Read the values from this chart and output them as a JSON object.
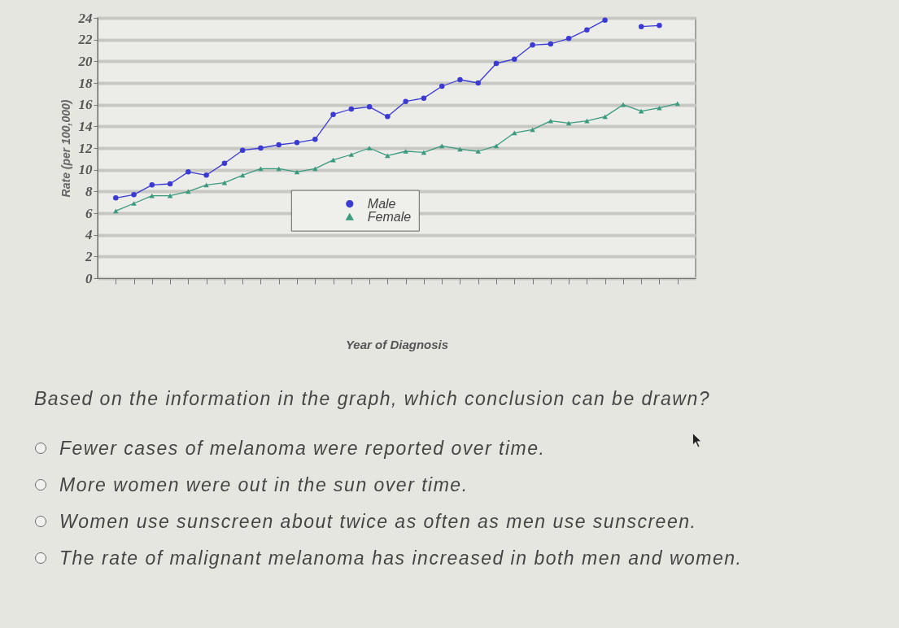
{
  "chart_data": {
    "type": "line",
    "xlabel": "Year of Diagnosis",
    "ylabel": "Rate (per 100,000)",
    "categories": [
      null,
      null,
      null,
      null,
      null,
      null,
      null,
      null,
      null,
      null,
      null,
      null,
      null,
      null,
      null,
      null,
      null,
      null,
      null,
      null,
      null,
      null,
      null,
      null,
      null,
      null,
      null,
      null,
      null,
      null,
      null,
      null
    ],
    "series": [
      {
        "name": "Male",
        "color": "#3b3bd4",
        "marker": "circle",
        "values": [
          7.4,
          7.7,
          8.6,
          8.7,
          9.8,
          9.5,
          10.6,
          11.8,
          12.0,
          12.3,
          12.5,
          12.8,
          15.1,
          15.6,
          15.8,
          14.9,
          16.3,
          16.6,
          17.7,
          18.3,
          18.0,
          19.8,
          20.2,
          21.5,
          21.6,
          22.1,
          22.9,
          23.8,
          null,
          23.2,
          23.3,
          null
        ]
      },
      {
        "name": "Female",
        "color": "#3a9a7e",
        "marker": "triangle",
        "values": [
          6.2,
          6.9,
          7.6,
          7.6,
          8.0,
          8.6,
          8.8,
          9.5,
          10.1,
          10.1,
          9.8,
          10.1,
          10.9,
          11.4,
          12.0,
          11.3,
          11.7,
          11.6,
          12.2,
          11.9,
          11.7,
          12.2,
          13.4,
          13.7,
          14.5,
          14.3,
          14.5,
          14.9,
          16.0,
          15.4,
          15.7,
          16.1
        ]
      }
    ],
    "ylim": [
      0,
      24
    ],
    "yticks": [
      0,
      2,
      4,
      6,
      8,
      10,
      12,
      14,
      16,
      18,
      20,
      22,
      24
    ],
    "grid": "y",
    "legend": "bottom",
    "annotations": [
      "Based on the information in the graph, which conclusion can be drawn?",
      "Fewer cases of melanoma were reported over time.",
      "More women were out in the sun over time.",
      "Women use sunscreen about twice as often as men use sunscreen.",
      "The rate of malignant melanoma has increased in both men and women."
    ]
  }
}
